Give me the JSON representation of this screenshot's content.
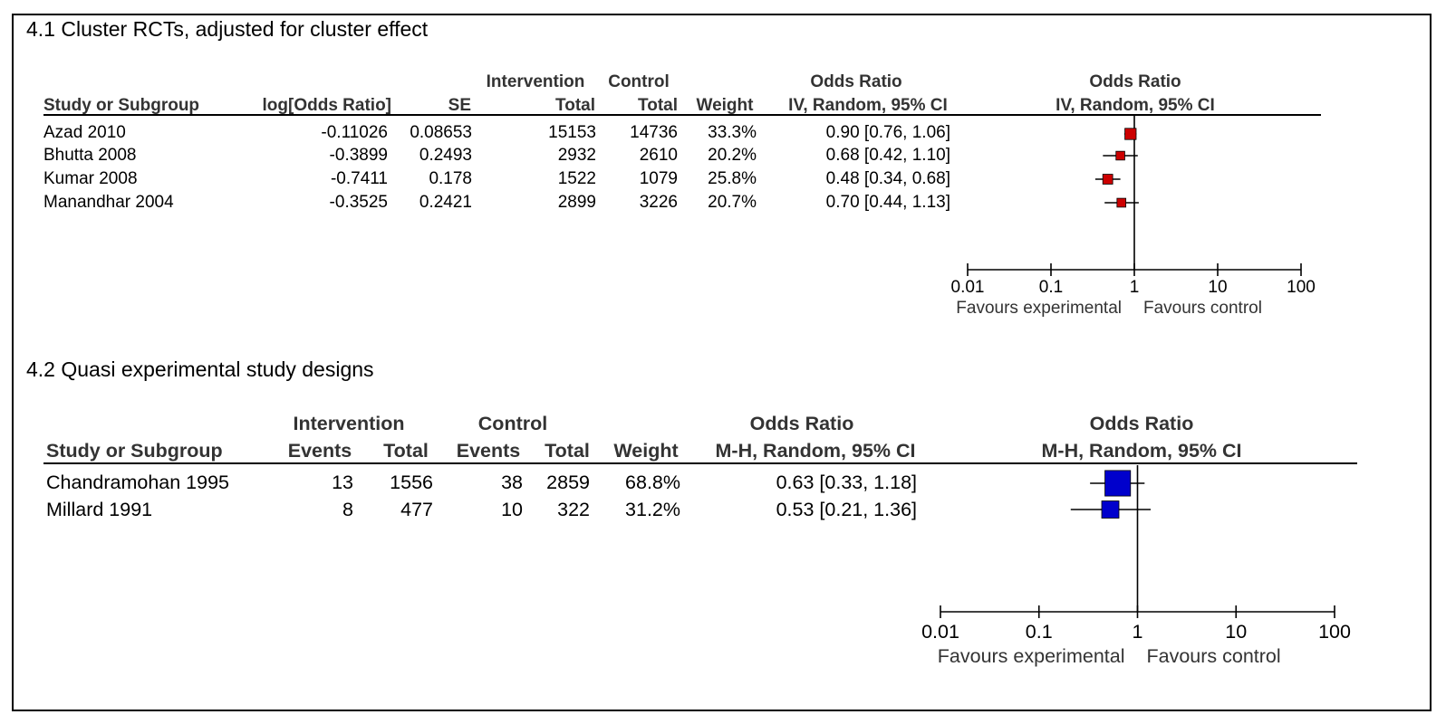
{
  "chart_data": [
    {
      "type": "forest",
      "title": "4.1 Cluster RCTs, adjusted for cluster effect",
      "headers": {
        "study": "Study or Subgroup",
        "log_or": "log[Odds Ratio]",
        "se": "SE",
        "intervention_top": "Intervention",
        "intervention_total": "Total",
        "control_top": "Control",
        "control_total": "Total",
        "weight": "Weight",
        "or_top": "Odds Ratio",
        "or_method": "IV, Random, 95% CI",
        "plot_top": "Odds Ratio",
        "plot_method": "IV, Random, 95% CI"
      },
      "rows": [
        {
          "study": "Azad 2010",
          "log_or": "-0.11026",
          "se": "0.08653",
          "int_total": "15153",
          "ctl_total": "14736",
          "weight": "33.3%",
          "ci_text": "0.90 [0.76, 1.06]",
          "or": 0.9,
          "lo": 0.76,
          "hi": 1.06
        },
        {
          "study": "Bhutta 2008",
          "log_or": "-0.3899",
          "se": "0.2493",
          "int_total": "2932",
          "ctl_total": "2610",
          "weight": "20.2%",
          "ci_text": "0.68 [0.42, 1.10]",
          "or": 0.68,
          "lo": 0.42,
          "hi": 1.1
        },
        {
          "study": "Kumar 2008",
          "log_or": "-0.7411",
          "se": "0.178",
          "int_total": "1522",
          "ctl_total": "1079",
          "weight": "25.8%",
          "ci_text": "0.48 [0.34, 0.68]",
          "or": 0.48,
          "lo": 0.34,
          "hi": 0.68
        },
        {
          "study": "Manandhar 2004",
          "log_or": "-0.3525",
          "se": "0.2421",
          "int_total": "2899",
          "ctl_total": "3226",
          "weight": "20.7%",
          "ci_text": "0.70 [0.44, 1.13]",
          "or": 0.7,
          "lo": 0.44,
          "hi": 1.13
        }
      ],
      "x_axis": {
        "scale": "log",
        "ticks": [
          0.01,
          0.1,
          1,
          10,
          100
        ],
        "tick_labels": [
          "0.01",
          "0.1",
          "1",
          "10",
          "100"
        ],
        "left_label": "Favours experimental",
        "right_label": "Favours control"
      },
      "marker_color": "#cc0000"
    },
    {
      "type": "forest",
      "title": "4.2 Quasi experimental study designs",
      "headers": {
        "study": "Study or Subgroup",
        "intervention_top": "Intervention",
        "int_events": "Events",
        "int_total": "Total",
        "control_top": "Control",
        "ctl_events": "Events",
        "ctl_total": "Total",
        "weight": "Weight",
        "or_top": "Odds Ratio",
        "or_method": "M-H, Random, 95% CI",
        "plot_top": "Odds Ratio",
        "plot_method": "M-H, Random, 95% CI"
      },
      "rows": [
        {
          "study": "Chandramohan 1995",
          "int_events": "13",
          "int_total": "1556",
          "ctl_events": "38",
          "ctl_total": "2859",
          "weight": "68.8%",
          "ci_text": "0.63 [0.33, 1.18]",
          "or": 0.63,
          "lo": 0.33,
          "hi": 1.18
        },
        {
          "study": "Millard 1991",
          "int_events": "8",
          "int_total": "477",
          "ctl_events": "10",
          "ctl_total": "322",
          "weight": "31.2%",
          "ci_text": "0.53 [0.21, 1.36]",
          "or": 0.53,
          "lo": 0.21,
          "hi": 1.36
        }
      ],
      "x_axis": {
        "scale": "log",
        "ticks": [
          0.01,
          0.1,
          1,
          10,
          100
        ],
        "tick_labels": [
          "0.01",
          "0.1",
          "1",
          "10",
          "100"
        ],
        "left_label": "Favours experimental",
        "right_label": "Favours control"
      },
      "marker_color": "#0000cc"
    }
  ]
}
